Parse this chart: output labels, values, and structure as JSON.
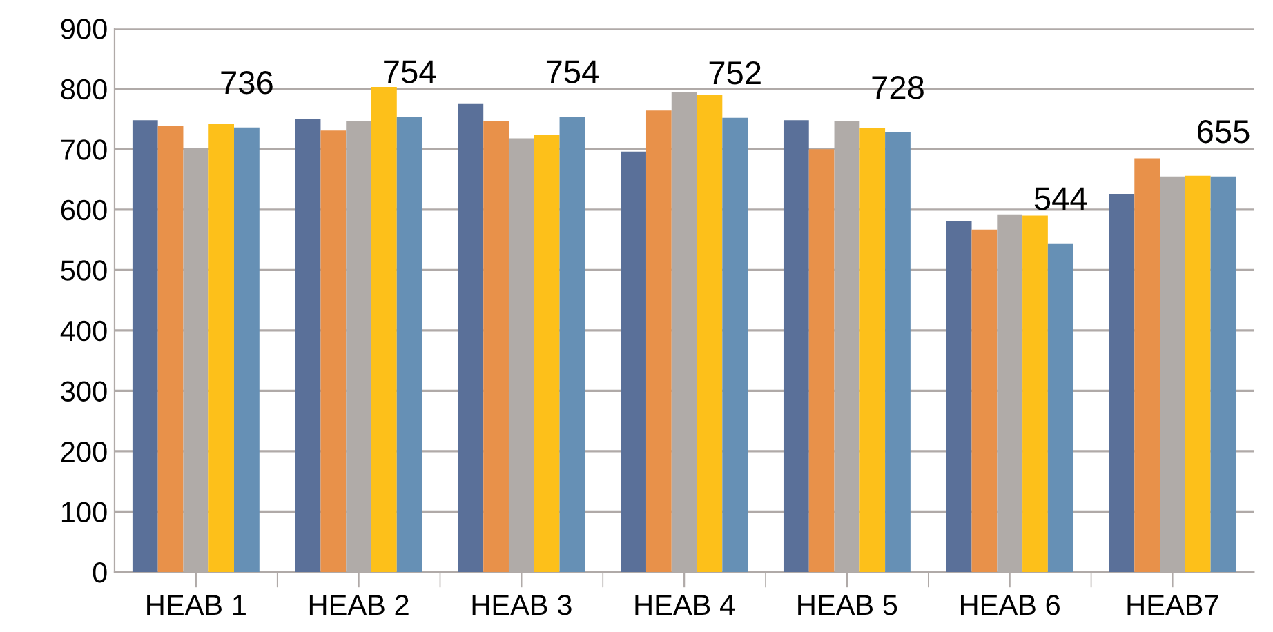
{
  "chart_data": {
    "type": "bar",
    "categories": [
      "HEAB 1",
      "HEAB 2",
      "HEAB 3",
      "HEAB 4",
      "HEAB 5",
      "HEAB 6",
      "HEAB7"
    ],
    "series": [
      {
        "color": "#5a7099",
        "values": [
          748,
          750,
          775,
          696,
          748,
          581,
          626
        ]
      },
      {
        "color": "#e8914a",
        "values": [
          738,
          731,
          747,
          764,
          700,
          567,
          685
        ]
      },
      {
        "color": "#b0aba8",
        "values": [
          700,
          746,
          718,
          795,
          747,
          592,
          655
        ]
      },
      {
        "color": "#fdc01a",
        "values": [
          742,
          803,
          724,
          790,
          735,
          590,
          656
        ]
      },
      {
        "color": "#6690b5",
        "values": [
          736,
          754,
          754,
          752,
          728,
          544,
          655
        ],
        "value_labels": [
          "736",
          "754",
          "754",
          "752",
          "728",
          "544",
          "655"
        ]
      }
    ],
    "ylim": [
      0,
      900
    ],
    "yticks": [
      0,
      100,
      200,
      300,
      400,
      500,
      600,
      700,
      800,
      900
    ],
    "grid": "y"
  }
}
